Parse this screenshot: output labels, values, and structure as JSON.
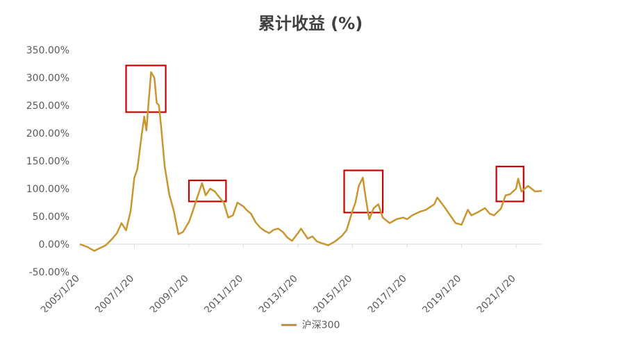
{
  "chart_data": {
    "type": "line",
    "title": "累计收益 (%)",
    "xlabel": "",
    "ylabel": "",
    "y_unit": "%",
    "ylim": [
      -50,
      350
    ],
    "y_ticks": [
      -50,
      0,
      50,
      100,
      150,
      200,
      250,
      300,
      350
    ],
    "y_tick_labels": [
      "-50.00%",
      "0.00%",
      "50.00%",
      "100.00%",
      "150.00%",
      "200.00%",
      "250.00%",
      "300.00%",
      "350.00%"
    ],
    "xlim": [
      "2005-01-20",
      "2021-12-31"
    ],
    "x_tick_labels": [
      "2005/1/20",
      "2007/1/20",
      "2009/1/20",
      "2011/1/20",
      "2013/1/20",
      "2015/1/20",
      "2017/1/20",
      "2019/1/20",
      "2021/1/20"
    ],
    "x_ticks": [
      "2005-01-20",
      "2007-01-20",
      "2009-01-20",
      "2011-01-20",
      "2013-01-20",
      "2015-01-20",
      "2017-01-20",
      "2019-01-20",
      "2021-01-20"
    ],
    "grid": false,
    "legend_position": "bottom-center",
    "series": [
      {
        "name": "沪深300",
        "color": "#c9952e",
        "x": [
          "2005-01-20",
          "2005-05-01",
          "2005-08-01",
          "2005-10-01",
          "2006-01-01",
          "2006-04-01",
          "2006-06-01",
          "2006-08-01",
          "2006-10-01",
          "2006-12-01",
          "2007-01-20",
          "2007-03-01",
          "2007-05-01",
          "2007-06-01",
          "2007-07-01",
          "2007-08-01",
          "2007-09-01",
          "2007-10-15",
          "2007-11-15",
          "2007-12-15",
          "2008-01-15",
          "2008-03-01",
          "2008-04-01",
          "2008-05-01",
          "2008-07-01",
          "2008-09-01",
          "2008-11-01",
          "2009-01-20",
          "2009-03-01",
          "2009-05-01",
          "2009-07-15",
          "2009-09-01",
          "2009-11-01",
          "2010-01-01",
          "2010-03-01",
          "2010-05-01",
          "2010-07-01",
          "2010-09-01",
          "2010-11-01",
          "2011-01-20",
          "2011-03-01",
          "2011-05-01",
          "2011-07-01",
          "2011-09-01",
          "2011-11-01",
          "2012-01-01",
          "2012-03-01",
          "2012-05-01",
          "2012-07-01",
          "2012-09-01",
          "2012-11-01",
          "2013-01-20",
          "2013-03-01",
          "2013-06-01",
          "2013-08-01",
          "2013-10-01",
          "2013-12-01",
          "2014-03-01",
          "2014-06-01",
          "2014-09-01",
          "2014-11-01",
          "2015-01-20",
          "2015-03-01",
          "2015-04-15",
          "2015-06-08",
          "2015-07-15",
          "2015-09-01",
          "2015-11-01",
          "2016-01-01",
          "2016-03-01",
          "2016-06-01",
          "2016-09-01",
          "2016-12-01",
          "2017-01-20",
          "2017-04-01",
          "2017-07-01",
          "2017-10-01",
          "2018-01-20",
          "2018-03-01",
          "2018-06-01",
          "2018-09-01",
          "2018-11-01",
          "2019-01-20",
          "2019-04-15",
          "2019-06-01",
          "2019-09-01",
          "2019-12-01",
          "2020-02-01",
          "2020-04-01",
          "2020-07-01",
          "2020-09-01",
          "2020-11-01",
          "2021-01-20",
          "2021-02-18",
          "2021-04-01",
          "2021-07-01",
          "2021-10-01",
          "2021-12-31"
        ],
        "y": [
          0,
          -5,
          -12,
          -8,
          -2,
          10,
          20,
          38,
          25,
          60,
          120,
          135,
          200,
          230,
          205,
          260,
          310,
          300,
          255,
          250,
          210,
          140,
          115,
          90,
          60,
          18,
          22,
          40,
          55,
          80,
          110,
          88,
          100,
          95,
          85,
          75,
          48,
          52,
          75,
          68,
          62,
          55,
          40,
          30,
          24,
          20,
          26,
          28,
          22,
          12,
          6,
          20,
          28,
          10,
          14,
          5,
          2,
          -2,
          5,
          15,
          25,
          60,
          75,
          105,
          120,
          85,
          45,
          65,
          72,
          48,
          38,
          45,
          48,
          45,
          52,
          58,
          62,
          72,
          84,
          68,
          50,
          38,
          35,
          62,
          52,
          58,
          65,
          55,
          52,
          64,
          88,
          90,
          100,
          118,
          95,
          105,
          95,
          96
        ]
      }
    ],
    "annotations": [
      {
        "type": "box",
        "x_range": [
          "2006-10-01",
          "2008-03-15"
        ],
        "y_range": [
          238,
          322
        ],
        "color": "#cc0000"
      },
      {
        "type": "box",
        "x_range": [
          "2009-01-20",
          "2010-06-01"
        ],
        "y_range": [
          77,
          115
        ],
        "color": "#cc0000"
      },
      {
        "type": "box",
        "x_range": [
          "2014-10-01",
          "2016-03-01"
        ],
        "y_range": [
          57,
          133
        ],
        "color": "#cc0000"
      },
      {
        "type": "box",
        "x_range": [
          "2020-05-01",
          "2021-05-01"
        ],
        "y_range": [
          77,
          140
        ],
        "color": "#cc0000"
      }
    ]
  }
}
